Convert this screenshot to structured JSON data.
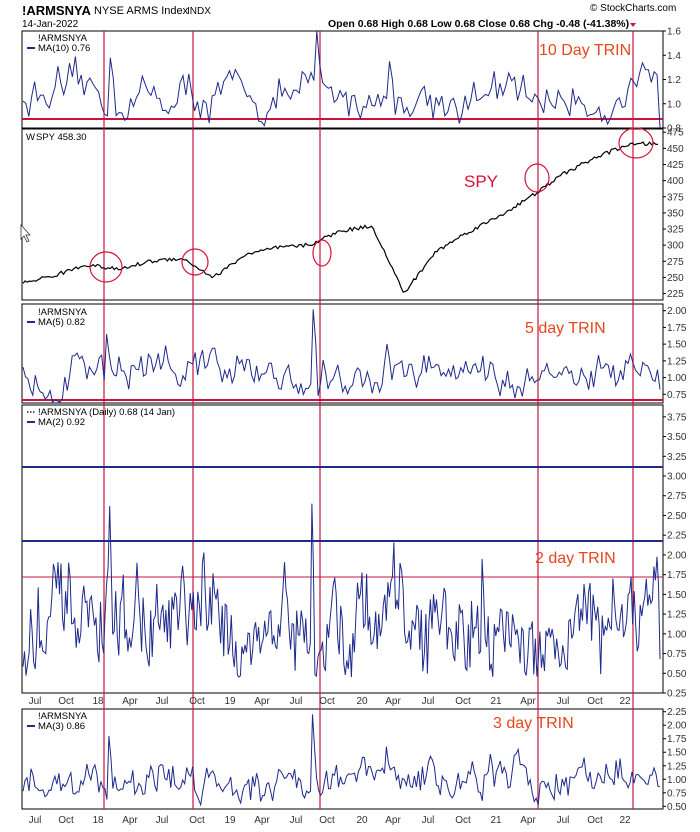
{
  "header": {
    "symbol": "!ARMSNYA",
    "description": "NYSE ARMS Index",
    "exchange": "INDX",
    "date": "14-Jan-2022",
    "quote": "Open 0.68  High 0.68  Low 0.68  Close 0.68  Chg -0.48 (-41.38%)",
    "brand": "© StockCharts.com"
  },
  "x_axis_labels": [
    "Jul",
    "Oct",
    "18",
    "Apr",
    "Jul",
    "Oct",
    "19",
    "Apr",
    "Jul",
    "Oct",
    "20",
    "Apr",
    "Jul",
    "Oct",
    "21",
    "Apr",
    "Jul",
    "Oct",
    "22"
  ],
  "colors": {
    "series": "#1e2a8c",
    "price": "#000000",
    "annotation": "#e8461c",
    "spy_annotation": "#d8103a",
    "marker_line": "#c8143c",
    "horizontal_line": "#1e2a8c"
  },
  "chart_data": [
    {
      "type": "line",
      "panel": "10 day TRIN",
      "labels": [
        "!ARMSNYA",
        "MA(10) 0.76"
      ],
      "annotation": "10 Day TRIN",
      "ylim": [
        0.8,
        1.6
      ],
      "y_ticks": [
        "1.6",
        "1.4",
        "1.2",
        "1.0",
        "0.8"
      ],
      "series": [
        {
          "name": "MA(10)",
          "last": 0.76
        }
      ],
      "horizontal_lines": [
        0.81
      ],
      "approx_range": [
        0.8,
        1.6
      ]
    },
    {
      "type": "line",
      "panel": "SPY",
      "labels": [
        "SPY 458.30"
      ],
      "annotation": "SPY",
      "ylim": [
        215,
        480
      ],
      "y_ticks": [
        "475",
        "450",
        "425",
        "400",
        "375",
        "350",
        "325",
        "300",
        "275",
        "250",
        "225"
      ],
      "x": [
        "2017-07",
        "2017-10",
        "2018-01",
        "2018-04",
        "2018-07",
        "2018-10",
        "2019-01",
        "2019-04",
        "2019-07",
        "2019-10",
        "2020-01",
        "2020-02",
        "2020-03",
        "2020-04",
        "2020-07",
        "2020-10",
        "2021-01",
        "2021-04",
        "2021-07",
        "2021-10",
        "2022-01"
      ],
      "series": [
        {
          "name": "SPY",
          "values": [
            242,
            253,
            270,
            262,
            275,
            280,
            250,
            285,
            296,
            300,
            322,
            330,
            225,
            290,
            320,
            345,
            375,
            410,
            435,
            455,
            458
          ]
        }
      ],
      "circled_points": [
        "2018-01",
        "2018-09",
        "2019-09",
        "2021-04",
        "2022-01"
      ]
    },
    {
      "type": "line",
      "panel": "5 day TRIN",
      "labels": [
        "!ARMSNYA",
        "MA(5) 0.82"
      ],
      "annotation": "5 day TRIN",
      "ylim": [
        0.62,
        2.1
      ],
      "y_ticks": [
        "2.00",
        "1.75",
        "1.50",
        "1.25",
        "1.00",
        "0.75"
      ],
      "series": [
        {
          "name": "MA(5)",
          "last": 0.82
        }
      ],
      "horizontal_lines": [
        0.65
      ]
    },
    {
      "type": "line",
      "panel": "2 day TRIN",
      "labels": [
        "!ARMSNYA (Daily) 0.68 (14 Jan)",
        "MA(2) 0.92"
      ],
      "annotation": "2 day TRIN",
      "ylim": [
        0.25,
        3.9
      ],
      "y_ticks": [
        "3.75",
        "3.50",
        "3.25",
        "3.00",
        "2.75",
        "2.50",
        "2.25",
        "2.00",
        "1.75",
        "1.50",
        "1.25",
        "1.00",
        "0.75",
        "0.50",
        "0.25"
      ],
      "series": [
        {
          "name": "!ARMSNYA",
          "last": 0.68
        },
        {
          "name": "MA(2)",
          "last": 0.92
        }
      ],
      "horizontal_lines": [
        3.06,
        2.14
      ],
      "secondary_line": 1.7
    },
    {
      "type": "line",
      "panel": "3 day TRIN",
      "labels": [
        "!ARMSNYA",
        "MA(3) 0.86"
      ],
      "annotation": "3 day TRIN",
      "ylim": [
        0.45,
        2.3
      ],
      "y_ticks": [
        "2.25",
        "2.00",
        "1.75",
        "1.50",
        "1.25",
        "1.00",
        "0.75",
        "0.50"
      ],
      "series": [
        {
          "name": "MA(3)",
          "last": 0.86
        }
      ]
    }
  ],
  "vertical_markers": [
    "2018-02",
    "2018-10",
    "2019-09",
    "2021-05",
    "2022-01"
  ]
}
